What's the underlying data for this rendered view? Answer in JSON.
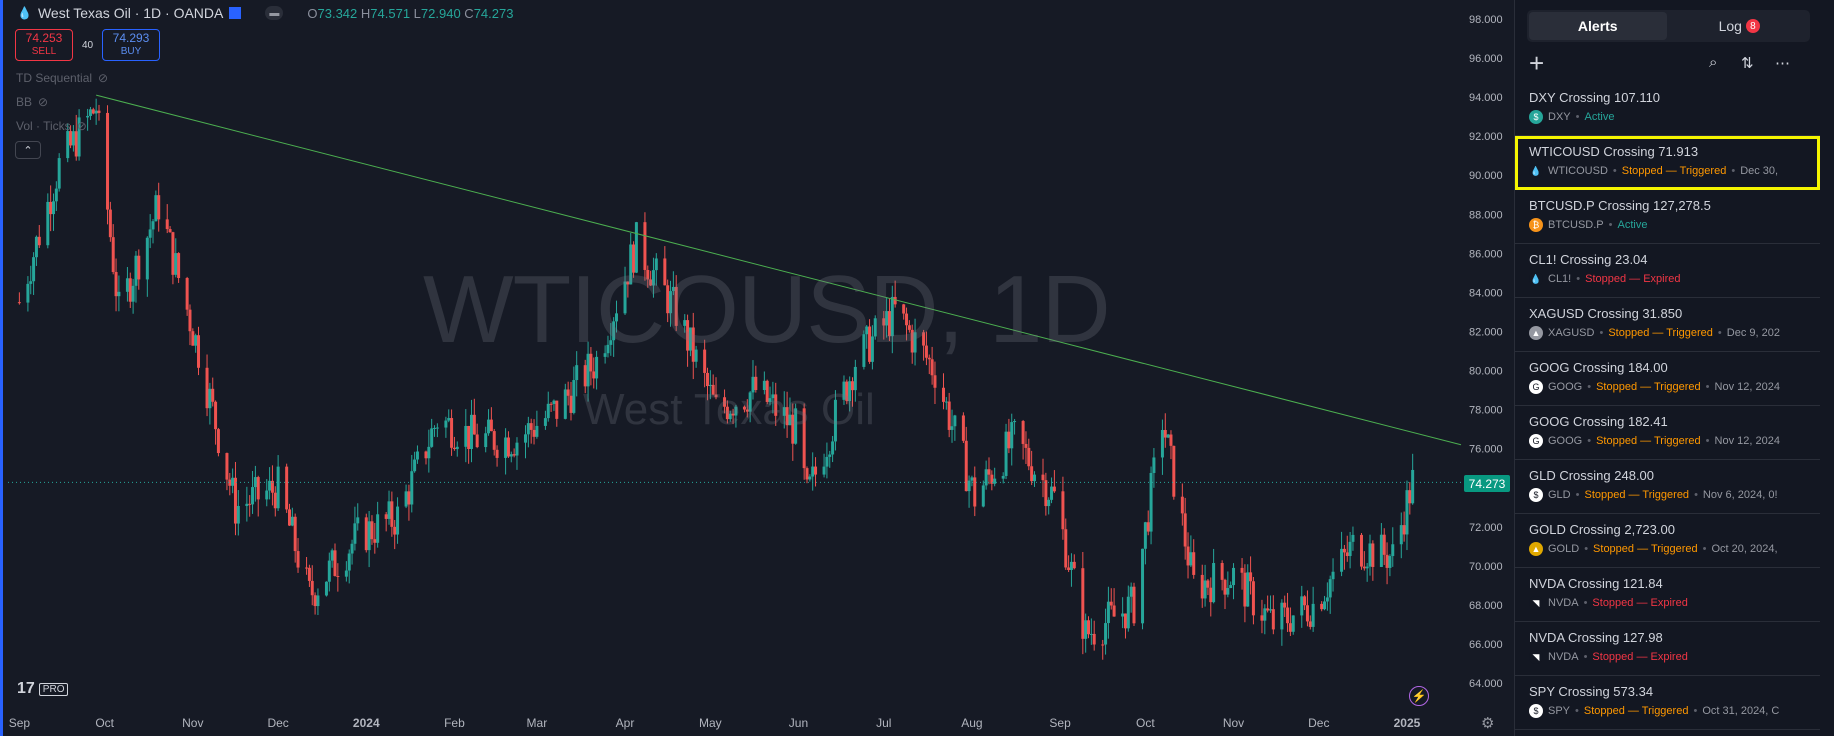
{
  "header": {
    "symbol_title": "West Texas Oil · 1D · OANDA",
    "o_label": "O",
    "o": "73.342",
    "h_label": "H",
    "h": "74.571",
    "l_label": "L",
    "l": "72.940",
    "c_label": "C",
    "c": "74.273"
  },
  "trade": {
    "sell_price": "74.253",
    "sell_label": "SELL",
    "spread": "40",
    "buy_price": "74.293",
    "buy_label": "BUY"
  },
  "indicators": [
    "TD Sequential",
    "BB",
    "Vol · Ticks"
  ],
  "watermark": {
    "symbol": "WTICOUSD, 1D",
    "name": "West Texas Oil"
  },
  "logo_text": "17",
  "logo_pro": "PRO",
  "current_price": "74.273",
  "chart_data": {
    "type": "candlestick",
    "y_ticks": [
      "98.000",
      "96.000",
      "94.000",
      "92.000",
      "90.000",
      "88.000",
      "86.000",
      "84.000",
      "82.000",
      "80.000",
      "78.000",
      "76.000",
      "74.000",
      "72.000",
      "70.000",
      "68.000",
      "66.000",
      "64.000"
    ],
    "x_ticks": [
      "Sep",
      "Oct",
      "Nov",
      "Dec",
      "2024",
      "Feb",
      "Mar",
      "Apr",
      "May",
      "Jun",
      "Jul",
      "Aug",
      "Sep",
      "Oct",
      "Nov",
      "Dec",
      "2025"
    ],
    "ylim": [
      63,
      99
    ],
    "trendline": [
      {
        "date": "2023-09-28",
        "price": 94.1
      },
      {
        "date": "2025-01-20",
        "price": 76.2
      }
    ],
    "closes_approx": [
      {
        "date": "2023-09-01",
        "price": 83.5
      },
      {
        "date": "2023-09-15",
        "price": 90.5
      },
      {
        "date": "2023-09-28",
        "price": 93.5
      },
      {
        "date": "2023-10-06",
        "price": 83.0
      },
      {
        "date": "2023-10-20",
        "price": 88.5
      },
      {
        "date": "2023-11-03",
        "price": 81.0
      },
      {
        "date": "2023-11-16",
        "price": 73.0
      },
      {
        "date": "2023-12-01",
        "price": 74.0
      },
      {
        "date": "2023-12-12",
        "price": 68.5
      },
      {
        "date": "2023-12-29",
        "price": 71.5
      },
      {
        "date": "2024-01-12",
        "price": 72.5
      },
      {
        "date": "2024-01-26",
        "price": 77.5
      },
      {
        "date": "2024-02-09",
        "price": 76.5
      },
      {
        "date": "2024-02-23",
        "price": 76.5
      },
      {
        "date": "2024-03-08",
        "price": 78.0
      },
      {
        "date": "2024-03-22",
        "price": 80.5
      },
      {
        "date": "2024-04-05",
        "price": 86.5
      },
      {
        "date": "2024-04-19",
        "price": 83.0
      },
      {
        "date": "2024-05-03",
        "price": 78.0
      },
      {
        "date": "2024-05-17",
        "price": 79.0
      },
      {
        "date": "2024-05-31",
        "price": 77.0
      },
      {
        "date": "2024-06-04",
        "price": 73.5
      },
      {
        "date": "2024-06-21",
        "price": 80.5
      },
      {
        "date": "2024-07-05",
        "price": 83.0
      },
      {
        "date": "2024-07-19",
        "price": 80.0
      },
      {
        "date": "2024-08-02",
        "price": 73.5
      },
      {
        "date": "2024-08-16",
        "price": 76.5
      },
      {
        "date": "2024-08-30",
        "price": 73.5
      },
      {
        "date": "2024-09-10",
        "price": 66.5
      },
      {
        "date": "2024-09-27",
        "price": 68.0
      },
      {
        "date": "2024-10-07",
        "price": 77.5
      },
      {
        "date": "2024-10-18",
        "price": 69.0
      },
      {
        "date": "2024-11-01",
        "price": 69.5
      },
      {
        "date": "2024-11-15",
        "price": 67.0
      },
      {
        "date": "2024-11-29",
        "price": 68.0
      },
      {
        "date": "2024-12-13",
        "price": 71.0
      },
      {
        "date": "2024-12-27",
        "price": 70.5
      },
      {
        "date": "2025-01-03",
        "price": 74.3
      }
    ]
  },
  "panel": {
    "tab_alerts": "Alerts",
    "tab_log": "Log",
    "log_count": "8",
    "alerts": [
      {
        "title": "DXY Crossing 107.110",
        "symbol": "DXY",
        "status": "Active",
        "status_type": "active",
        "date": "",
        "icon": "dollar-icon",
        "icon_color": "#26a69a",
        "icon_glyph": "$"
      },
      {
        "title": "WTICOUSD Crossing 71.913",
        "symbol": "WTICOUSD",
        "status": "Stopped — Triggered",
        "status_type": "trig",
        "date": "Dec 30,",
        "icon": "oil-drop-icon",
        "icon_color": "#131722",
        "icon_glyph": "💧"
      },
      {
        "title": "BTCUSD.P Crossing 127,278.5",
        "symbol": "BTCUSD.P",
        "status": "Active",
        "status_type": "active",
        "date": "",
        "icon": "bitcoin-icon",
        "icon_color": "#f7931a",
        "icon_glyph": "₿"
      },
      {
        "title": "CL1! Crossing 23.04",
        "symbol": "CL1!",
        "status": "Stopped — Expired",
        "status_type": "exp",
        "date": "",
        "icon": "oil-drop-icon",
        "icon_color": "#131722",
        "icon_glyph": "💧"
      },
      {
        "title": "XAGUSD Crossing 31.850",
        "symbol": "XAGUSD",
        "status": "Stopped — Triggered",
        "status_type": "trig",
        "date": "Dec 9, 202",
        "icon": "silver-icon",
        "icon_color": "#9598a1",
        "icon_glyph": "▲"
      },
      {
        "title": "GOOG Crossing 184.00",
        "symbol": "GOOG",
        "status": "Stopped — Triggered",
        "status_type": "trig",
        "date": "Nov 12, 2024",
        "icon": "google-icon",
        "icon_color": "#ffffff",
        "icon_glyph": "G"
      },
      {
        "title": "GOOG Crossing 182.41",
        "symbol": "GOOG",
        "status": "Stopped — Triggered",
        "status_type": "trig",
        "date": "Nov 12, 2024",
        "icon": "google-icon",
        "icon_color": "#ffffff",
        "icon_glyph": "G"
      },
      {
        "title": "GLD Crossing 248.00",
        "symbol": "GLD",
        "status": "Stopped — Triggered",
        "status_type": "trig",
        "date": "Nov 6, 2024, 0!",
        "icon": "dollar-icon",
        "icon_color": "#ffffff",
        "icon_glyph": "$"
      },
      {
        "title": "GOLD Crossing 2,723.00",
        "symbol": "GOLD",
        "status": "Stopped — Triggered",
        "status_type": "trig",
        "date": "Oct 20, 2024,",
        "icon": "gold-icon",
        "icon_color": "#e0a800",
        "icon_glyph": "▲"
      },
      {
        "title": "NVDA Crossing 121.84",
        "symbol": "NVDA",
        "status": "Stopped — Expired",
        "status_type": "exp",
        "date": "",
        "icon": "nvidia-icon",
        "icon_color": "#131722",
        "icon_glyph": "◥"
      },
      {
        "title": "NVDA Crossing 127.98",
        "symbol": "NVDA",
        "status": "Stopped — Expired",
        "status_type": "exp",
        "date": "",
        "icon": "nvidia-icon",
        "icon_color": "#131722",
        "icon_glyph": "◥"
      },
      {
        "title": "SPY Crossing 573.34",
        "symbol": "SPY",
        "status": "Stopped — Triggered",
        "status_type": "trig",
        "date": "Oct 31, 2024, C",
        "icon": "dollar-icon",
        "icon_color": "#ffffff",
        "icon_glyph": "$"
      }
    ]
  }
}
